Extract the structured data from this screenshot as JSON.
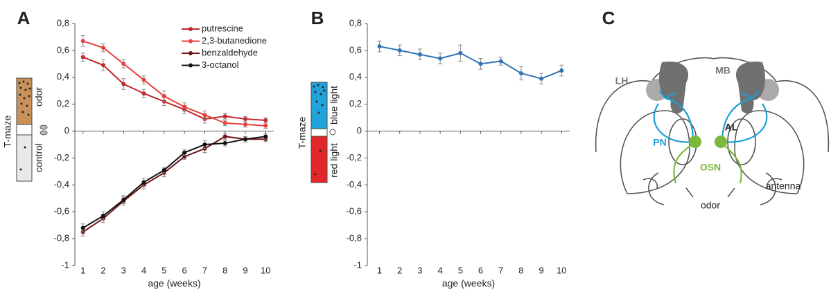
{
  "panel_labels": [
    "A",
    "B",
    "C"
  ],
  "chart_data": [
    {
      "type": "line",
      "x_label": "age (weeks)",
      "x": [
        1,
        2,
        3,
        4,
        5,
        6,
        7,
        8,
        9,
        10
      ],
      "xlim": [
        0.6,
        10.4
      ],
      "ylim": [
        -1,
        0.8
      ],
      "yticks": [
        {
          "value": -1,
          "label": "-1"
        },
        {
          "value": -0.8,
          "label": "-0,8"
        },
        {
          "value": -0.6,
          "label": "-0,6"
        },
        {
          "value": -0.4,
          "label": "-0,4"
        },
        {
          "value": -0.2,
          "label": "-0,2"
        },
        0,
        {
          "value": 0.2,
          "label": "0,2"
        },
        {
          "value": 0.4,
          "label": "0,4"
        },
        {
          "value": 0.6,
          "label": "0,6"
        },
        {
          "value": 0.8,
          "label": "0,8"
        }
      ],
      "series": [
        {
          "name": "putrescine",
          "color": "#c1272d",
          "values": [
            0.55,
            0.49,
            0.35,
            0.28,
            0.22,
            0.16,
            0.09,
            0.11,
            0.09,
            0.08
          ],
          "errors": [
            0.03,
            0.04,
            0.04,
            0.03,
            0.03,
            0.03,
            0.03,
            0.02,
            0.02,
            0.02
          ]
        },
        {
          "name": "2,3-butanedione",
          "color": "#e8403c",
          "values": [
            0.67,
            0.62,
            0.5,
            0.38,
            0.26,
            0.18,
            0.12,
            0.06,
            0.05,
            0.04
          ],
          "errors": [
            0.04,
            0.03,
            0.03,
            0.03,
            0.04,
            0.03,
            0.03,
            0.02,
            0.02,
            0.02
          ]
        },
        {
          "name": "benzaldehyde",
          "color": "#6e1414",
          "values": [
            -0.75,
            -0.65,
            -0.52,
            -0.4,
            -0.31,
            -0.19,
            -0.13,
            -0.04,
            -0.06,
            -0.06
          ],
          "errors": [
            0.03,
            0.03,
            0.03,
            0.03,
            0.03,
            0.02,
            0.03,
            0.02,
            0.02,
            0.02
          ]
        },
        {
          "name": "3-octanol",
          "color": "#111111",
          "values": [
            -0.72,
            -0.63,
            -0.51,
            -0.38,
            -0.29,
            -0.16,
            -0.1,
            -0.09,
            -0.06,
            -0.04
          ],
          "errors": [
            0.03,
            0.03,
            0.03,
            0.03,
            0.02,
            0.02,
            0.03,
            0.02,
            0.02,
            0.02
          ]
        }
      ]
    },
    {
      "type": "line",
      "x_label": "age (weeks)",
      "x": [
        1,
        2,
        3,
        4,
        5,
        6,
        7,
        8,
        9,
        10
      ],
      "xlim": [
        0.4,
        10.4
      ],
      "ylim": [
        -1,
        0.8
      ],
      "yticks": [
        {
          "value": -1,
          "label": "-1"
        },
        {
          "value": -0.8,
          "label": "-0,8"
        },
        {
          "value": -0.6,
          "label": "-0,6"
        },
        {
          "value": -0.4,
          "label": "-0,4"
        },
        {
          "value": -0.2,
          "label": "-0,2"
        },
        0,
        {
          "value": 0.2,
          "label": "0,2"
        },
        {
          "value": 0.4,
          "label": "0,4"
        },
        {
          "value": 0.6,
          "label": "0,6"
        },
        {
          "value": 0.8,
          "label": "0,8"
        }
      ],
      "series": [
        {
          "name": "blue light",
          "color": "#2f73b5",
          "values": [
            0.63,
            0.6,
            0.57,
            0.54,
            0.58,
            0.5,
            0.52,
            0.43,
            0.39,
            0.45
          ],
          "errors": [
            0.04,
            0.04,
            0.04,
            0.04,
            0.06,
            0.04,
            0.03,
            0.05,
            0.04,
            0.04
          ]
        }
      ]
    }
  ],
  "insets": [
    {
      "title": "T-maze",
      "top": "odor",
      "bottom": "control"
    },
    {
      "title": "T-maze",
      "top": "blue light",
      "bottom": "red light"
    }
  ],
  "diagram": {
    "lh": "LH",
    "mb": "MB",
    "al": "AL",
    "pn": "PN",
    "osn": "OSN",
    "antenna": "antenna",
    "odor": "odor"
  }
}
